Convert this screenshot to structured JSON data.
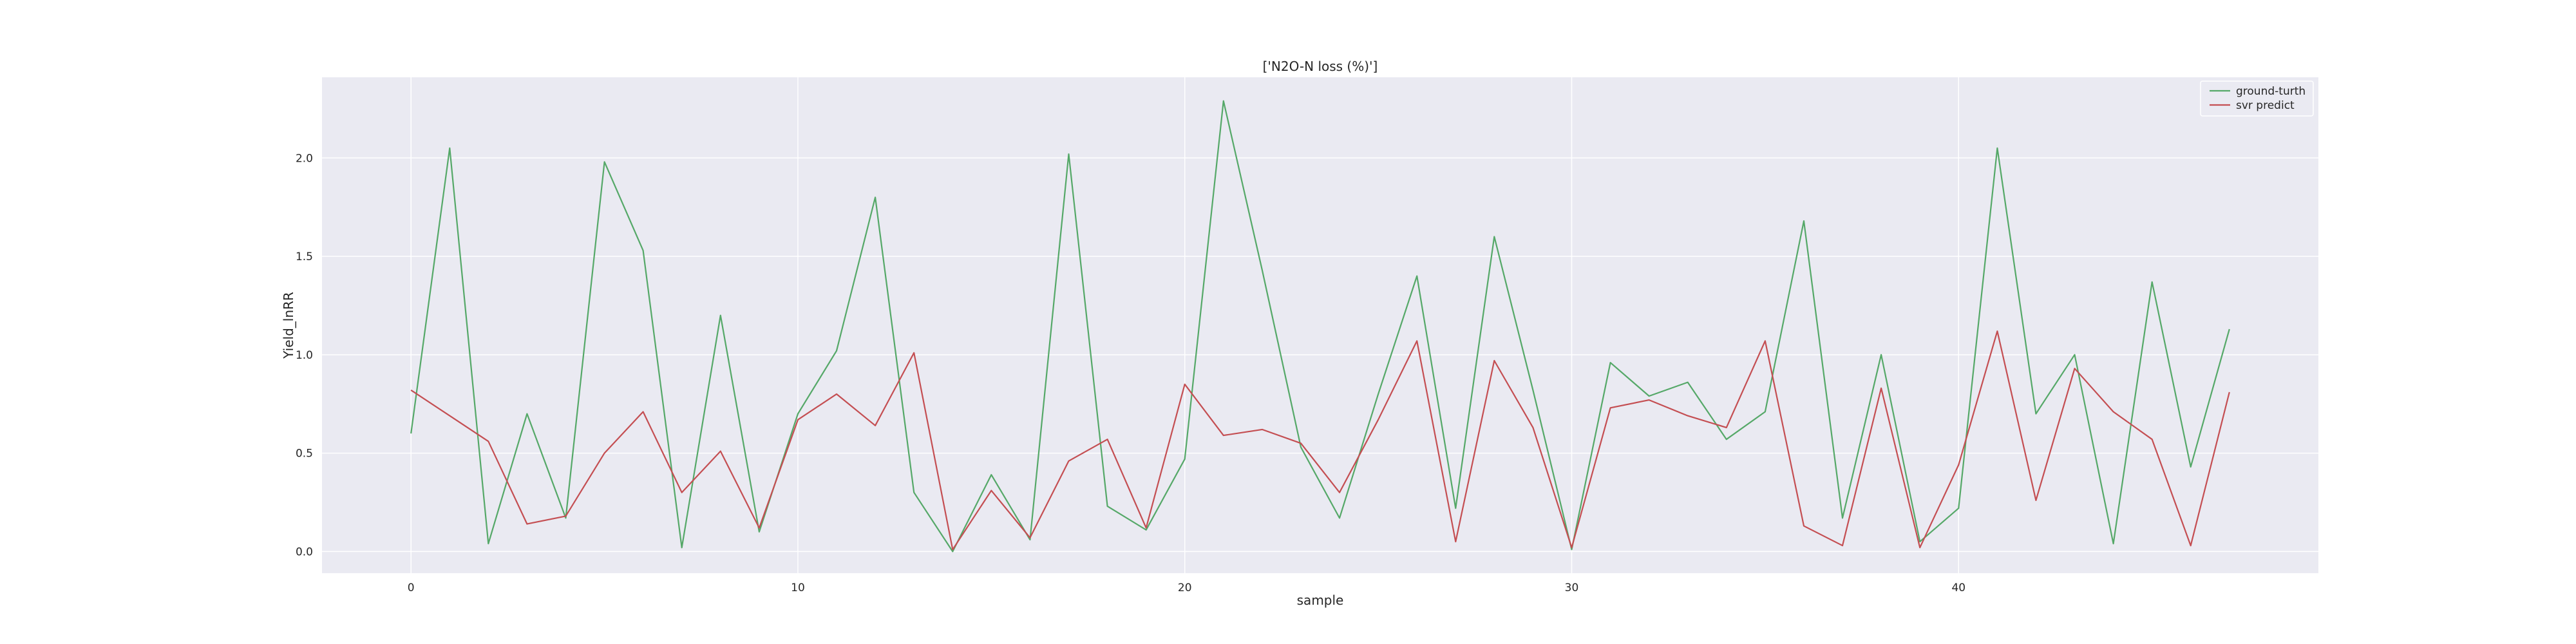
{
  "chart_data": {
    "type": "line",
    "title": "['N2O-N loss (%)']",
    "xlabel": "sample",
    "ylabel": "Yield_lnRR",
    "xlim": [
      -2.3,
      49.3
    ],
    "ylim": [
      -0.11,
      2.41
    ],
    "x_ticks": [
      0,
      10,
      20,
      30,
      40
    ],
    "y_ticks": [
      0.0,
      0.5,
      1.0,
      1.5,
      2.0
    ],
    "grid": true,
    "legend_position": "top-right",
    "series": [
      {
        "name": "ground-turth",
        "color": "#55a868",
        "values": [
          0.6,
          2.05,
          0.04,
          0.7,
          0.17,
          1.98,
          1.53,
          0.02,
          1.2,
          0.1,
          0.7,
          1.02,
          1.8,
          0.3,
          0.0,
          0.39,
          0.06,
          2.02,
          0.23,
          0.11,
          0.47,
          2.29,
          1.43,
          0.53,
          0.17,
          0.8,
          1.4,
          0.22,
          1.6,
          0.82,
          0.01,
          0.96,
          0.79,
          0.86,
          0.57,
          0.71,
          1.68,
          0.17,
          1.0,
          0.05,
          0.22,
          2.05,
          0.7,
          1.0,
          0.04,
          1.37,
          0.43,
          1.13
        ]
      },
      {
        "name": "svr predict",
        "color": "#c44e52",
        "values": [
          0.82,
          0.69,
          0.56,
          0.14,
          0.18,
          0.5,
          0.71,
          0.3,
          0.51,
          0.12,
          0.67,
          0.8,
          0.64,
          1.01,
          0.01,
          0.31,
          0.07,
          0.46,
          0.57,
          0.12,
          0.85,
          0.59,
          0.62,
          0.55,
          0.3,
          0.67,
          1.07,
          0.05,
          0.97,
          0.63,
          0.02,
          0.73,
          0.77,
          0.69,
          0.63,
          1.07,
          0.13,
          0.03,
          0.83,
          0.02,
          0.44,
          1.12,
          0.26,
          0.93,
          0.71,
          0.57,
          0.03,
          0.81
        ]
      }
    ]
  }
}
